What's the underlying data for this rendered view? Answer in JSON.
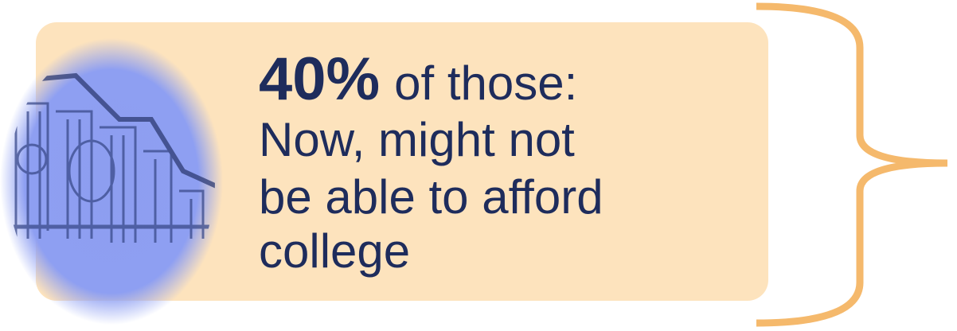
{
  "callout": {
    "highlight": "40%",
    "intro": "of those:",
    "lines": [
      "Now, might not",
      "be able to afford",
      "college"
    ]
  }
}
